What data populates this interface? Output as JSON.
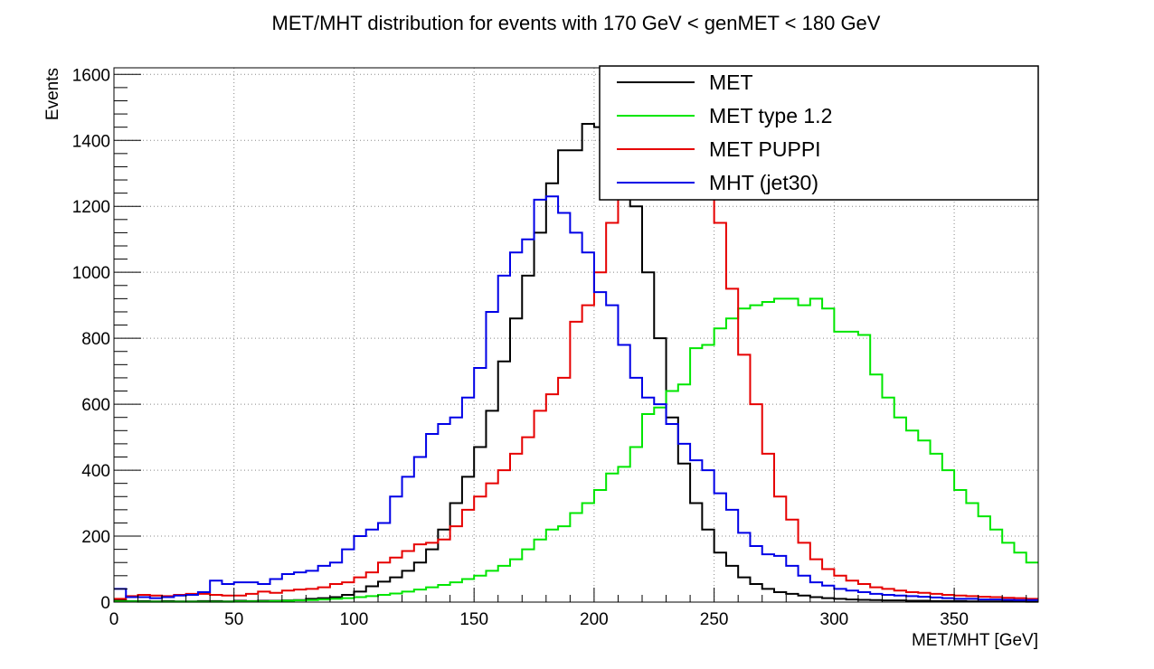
{
  "chart_data": {
    "type": "line",
    "step": true,
    "title": "MET/MHT distribution for events with 170 GeV < genMET < 180 GeV",
    "xlabel": "MET/MHT [GeV]",
    "ylabel": "Events",
    "xlim": [
      0,
      385
    ],
    "ylim": [
      0,
      1620
    ],
    "grid": true,
    "legend_position": "top-right",
    "x_ticks": [
      0,
      50,
      100,
      150,
      200,
      250,
      300,
      350
    ],
    "y_ticks": [
      0,
      200,
      400,
      600,
      800,
      1000,
      1200,
      1400,
      1600
    ],
    "bin_edges": [
      0,
      5,
      10,
      15,
      20,
      25,
      30,
      35,
      40,
      45,
      50,
      55,
      60,
      65,
      70,
      75,
      80,
      85,
      90,
      95,
      100,
      105,
      110,
      115,
      120,
      125,
      130,
      135,
      140,
      145,
      150,
      155,
      160,
      165,
      170,
      175,
      180,
      185,
      190,
      195,
      200,
      205,
      210,
      215,
      220,
      225,
      230,
      235,
      240,
      245,
      250,
      255,
      260,
      265,
      270,
      275,
      280,
      285,
      290,
      295,
      300,
      305,
      310,
      315,
      320,
      325,
      330,
      335,
      340,
      345,
      350,
      355,
      360,
      365,
      370,
      375,
      380,
      385
    ],
    "series": [
      {
        "name": "MET",
        "color": "#000000",
        "values": [
          5,
          3,
          3,
          2,
          3,
          2,
          2,
          3,
          3,
          2,
          4,
          3,
          4,
          4,
          5,
          6,
          10,
          12,
          15,
          22,
          32,
          48,
          62,
          75,
          95,
          120,
          160,
          220,
          300,
          380,
          470,
          580,
          730,
          860,
          990,
          1120,
          1270,
          1370,
          1370,
          1450,
          1440,
          1460,
          1300,
          1200,
          1000,
          800,
          560,
          420,
          300,
          220,
          150,
          110,
          75,
          55,
          40,
          30,
          25,
          20,
          15,
          12,
          10,
          8,
          7,
          6,
          5,
          5,
          4,
          4,
          3,
          3,
          3,
          2,
          2,
          2,
          2,
          2,
          1
        ]
      },
      {
        "name": "MET type 1.2",
        "color": "#00e600",
        "values": [
          2,
          2,
          1,
          1,
          1,
          1,
          1,
          1,
          1,
          1,
          2,
          2,
          2,
          3,
          4,
          5,
          6,
          8,
          10,
          12,
          15,
          18,
          22,
          26,
          32,
          38,
          45,
          52,
          60,
          70,
          80,
          95,
          110,
          130,
          160,
          190,
          220,
          230,
          270,
          300,
          340,
          390,
          410,
          470,
          570,
          590,
          640,
          660,
          770,
          780,
          830,
          860,
          890,
          900,
          910,
          920,
          920,
          900,
          920,
          890,
          820,
          820,
          810,
          690,
          620,
          560,
          520,
          490,
          450,
          400,
          340,
          300,
          260,
          220,
          180,
          150,
          120
        ]
      },
      {
        "name": "MET PUPPI",
        "color": "#e60000",
        "values": [
          10,
          18,
          22,
          20,
          18,
          22,
          25,
          25,
          22,
          20,
          20,
          25,
          32,
          28,
          35,
          38,
          40,
          45,
          55,
          60,
          75,
          90,
          120,
          135,
          155,
          175,
          180,
          190,
          230,
          280,
          320,
          360,
          400,
          450,
          500,
          580,
          630,
          680,
          850,
          900,
          1000,
          1150,
          1300,
          1380,
          1380,
          1460,
          1450,
          1380,
          1270,
          1250,
          1150,
          950,
          750,
          600,
          450,
          320,
          250,
          180,
          130,
          100,
          80,
          65,
          55,
          45,
          40,
          35,
          30,
          28,
          25,
          22,
          20,
          18,
          16,
          15,
          13,
          12,
          10
        ]
      },
      {
        "name": "MHT (jet30)",
        "color": "#0000e6",
        "values": [
          40,
          15,
          15,
          12,
          15,
          20,
          22,
          30,
          65,
          55,
          60,
          60,
          55,
          70,
          85,
          90,
          95,
          110,
          120,
          160,
          200,
          220,
          240,
          320,
          380,
          440,
          510,
          540,
          560,
          620,
          710,
          880,
          990,
          1060,
          1100,
          1220,
          1230,
          1180,
          1120,
          1060,
          940,
          900,
          780,
          680,
          620,
          600,
          540,
          480,
          430,
          400,
          330,
          280,
          210,
          170,
          145,
          140,
          110,
          80,
          60,
          50,
          40,
          35,
          30,
          25,
          22,
          20,
          18,
          16,
          14,
          12,
          10,
          10,
          8,
          8,
          7,
          6,
          6
        ]
      }
    ]
  }
}
